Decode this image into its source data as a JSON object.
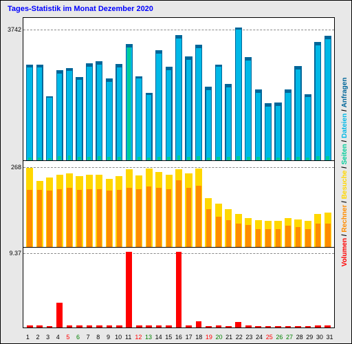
{
  "title": "Tages-Statistik im Monat Dezember 2020",
  "title_color": "#0000ff",
  "background_color": "#e8e8e8",
  "plot_background": "#ffffff",
  "border_color": "#000000",
  "grid_color": "#888888",
  "legend": {
    "items": [
      {
        "label": "Volumen",
        "color": "#ff0000"
      },
      {
        "label": "Rechner",
        "color": "#ff8c00"
      },
      {
        "label": "Besuche",
        "color": "#ffd700"
      },
      {
        "label": "Seiten",
        "color": "#00cc99"
      },
      {
        "label": "Dateien",
        "color": "#00b8e6"
      },
      {
        "label": "Anfragen",
        "color": "#006699"
      }
    ],
    "separator": " / "
  },
  "days": [
    "1",
    "2",
    "3",
    "4",
    "5",
    "6",
    "7",
    "8",
    "9",
    "10",
    "11",
    "12",
    "13",
    "14",
    "15",
    "16",
    "17",
    "18",
    "19",
    "20",
    "21",
    "22",
    "23",
    "24",
    "25",
    "26",
    "27",
    "28",
    "29",
    "30",
    "31"
  ],
  "day_label_colors": [
    "#000",
    "#000",
    "#000",
    "#000",
    "#ff0000",
    "#008000",
    "#000",
    "#000",
    "#000",
    "#000",
    "#000",
    "#ff0000",
    "#008000",
    "#000",
    "#000",
    "#000",
    "#000",
    "#000",
    "#ff0000",
    "#008000",
    "#000",
    "#000",
    "#000",
    "#000",
    "#ff0000",
    "#008000",
    "#008000",
    "#000",
    "#000",
    "#000",
    "#000"
  ],
  "panels": [
    {
      "name": "requests",
      "top_pct": 0,
      "height_pct": 46,
      "ytick_label": "3742",
      "ytick_pos_pct": 8,
      "ymax": 4100,
      "series": [
        {
          "name": "anfragen",
          "color": "#006699",
          "width_pct": 70,
          "z": 1,
          "values": [
            2750,
            2750,
            1850,
            2600,
            2650,
            2400,
            2800,
            2850,
            2350,
            2780,
            3350,
            2420,
            1950,
            3170,
            2700,
            3600,
            3000,
            3330,
            2120,
            2760,
            2200,
            3830,
            2980,
            2050,
            1650,
            1660,
            2050,
            2720,
            1900,
            3400,
            3580
          ]
        },
        {
          "name": "dateien",
          "color": "#00b8e6",
          "width_pct": 52,
          "z": 2,
          "values": [
            2680,
            2680,
            1800,
            2500,
            2580,
            2320,
            2700,
            2750,
            2250,
            2680,
            3250,
            2350,
            1880,
            3080,
            2600,
            3500,
            2900,
            3230,
            2030,
            2690,
            2100,
            3760,
            2870,
            1950,
            1550,
            1560,
            1950,
            2620,
            1820,
            3300,
            3480
          ]
        },
        {
          "name": "seiten",
          "color": "#00cc99",
          "width_pct": 34,
          "z": 3,
          "values": [
            80,
            80,
            60,
            120,
            130,
            90,
            100,
            120,
            90,
            100,
            3250,
            90,
            80,
            100,
            95,
            130,
            100,
            110,
            85,
            90,
            95,
            120,
            100,
            90,
            70,
            70,
            85,
            90,
            80,
            110,
            120
          ]
        }
      ]
    },
    {
      "name": "visits",
      "top_pct": 46,
      "height_pct": 28,
      "ytick_label": "268",
      "ytick_pos_pct": 8,
      "ymax": 300,
      "series": [
        {
          "name": "besuche",
          "color": "#ffd700",
          "width_pct": 70,
          "z": 1,
          "values": [
            275,
            228,
            240,
            250,
            255,
            245,
            250,
            250,
            235,
            245,
            270,
            248,
            272,
            260,
            250,
            270,
            255,
            272,
            170,
            150,
            130,
            115,
            100,
            92,
            90,
            90,
            100,
            95,
            90,
            115,
            120
          ]
        },
        {
          "name": "rechner",
          "color": "#ff8c00",
          "width_pct": 52,
          "z": 2,
          "values": [
            198,
            198,
            195,
            200,
            205,
            198,
            200,
            200,
            195,
            198,
            205,
            200,
            210,
            205,
            200,
            230,
            205,
            212,
            130,
            105,
            92,
            80,
            76,
            62,
            62,
            62,
            73,
            70,
            62,
            80,
            82
          ]
        }
      ]
    },
    {
      "name": "volume",
      "top_pct": 74,
      "height_pct": 26,
      "ytick_label": "9.37",
      "ytick_pos_pct": 8,
      "ymax": 10.3,
      "series": [
        {
          "name": "volumen",
          "color": "#ff0000",
          "width_pct": 60,
          "z": 1,
          "values": [
            0.25,
            0.25,
            0.2,
            3.2,
            0.3,
            0.25,
            0.3,
            0.3,
            0.25,
            0.3,
            9.7,
            0.3,
            0.25,
            0.3,
            0.28,
            9.7,
            0.3,
            0.8,
            0.22,
            0.25,
            0.22,
            0.7,
            0.25,
            0.2,
            0.18,
            0.18,
            0.2,
            0.22,
            0.2,
            0.28,
            0.3
          ]
        }
      ]
    }
  ]
}
